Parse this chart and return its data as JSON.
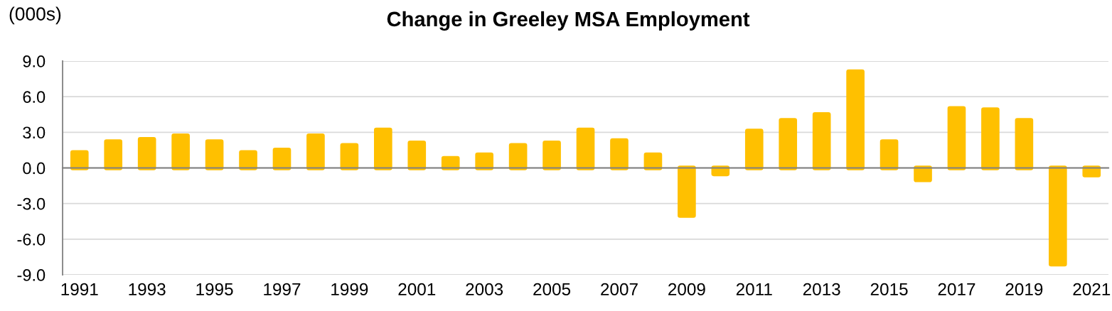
{
  "chart_data": {
    "type": "bar",
    "title": "Change in Greeley MSA Employment",
    "ylabel": "(000s)",
    "categories": [
      "1991",
      null,
      "1993",
      null,
      "1995",
      null,
      "1997",
      null,
      "1999",
      null,
      "2001",
      null,
      "2003",
      null,
      "2005",
      null,
      "2007",
      null,
      "2009",
      null,
      "2011",
      null,
      "2013",
      null,
      "2015",
      null,
      "2017",
      null,
      "2019",
      null,
      "2021"
    ],
    "series": [
      {
        "color": "#ffc000",
        "values": [
          1.3,
          2.2,
          2.4,
          2.7,
          2.2,
          1.3,
          1.5,
          2.7,
          1.9,
          3.2,
          2.1,
          0.8,
          1.1,
          1.9,
          2.1,
          3.2,
          2.3,
          1.1,
          -4.0,
          -0.5,
          3.1,
          4.0,
          4.5,
          8.1,
          2.2,
          -1.0,
          5.0,
          4.9,
          4.0,
          -8.1,
          -0.6
        ]
      }
    ],
    "ylim": [
      -9,
      9
    ],
    "yticks": [
      {
        "value": -9,
        "label": "-9.0"
      },
      {
        "value": -6,
        "label": "-6.0"
      },
      {
        "value": -3,
        "label": "-3.0"
      },
      {
        "value": 0,
        "label": "0.0"
      },
      {
        "value": 3,
        "label": "3.0"
      },
      {
        "value": 6,
        "label": "6.0"
      },
      {
        "value": 9,
        "label": "9.0"
      }
    ],
    "grid": "y"
  }
}
